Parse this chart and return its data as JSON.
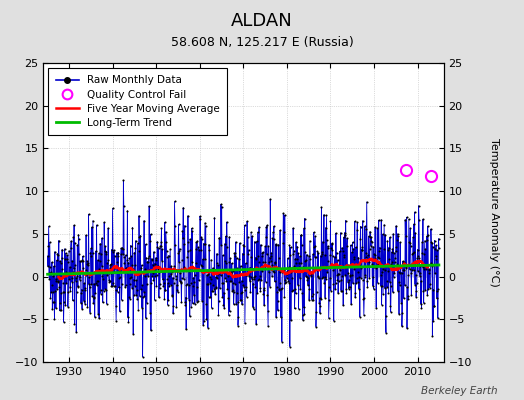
{
  "title": "ALDAN",
  "subtitle": "58.608 N, 125.217 E (Russia)",
  "ylabel": "Temperature Anomaly (°C)",
  "credit": "Berkeley Earth",
  "xlim": [
    1924,
    2016
  ],
  "ylim": [
    -10,
    25
  ],
  "yticks": [
    -10,
    -5,
    0,
    5,
    10,
    15,
    20,
    25
  ],
  "xticks": [
    1930,
    1940,
    1950,
    1960,
    1970,
    1980,
    1990,
    2000,
    2010
  ],
  "seed": 42,
  "raw_color": "#0000cc",
  "ma_color": "#ff0000",
  "trend_color": "#00bb00",
  "qc_color": "#ff00ff",
  "bg_color": "#ffffff",
  "fig_bg_color": "#e0e0e0",
  "n_months": 1080,
  "start_year": 1925.0,
  "qc_points": [
    [
      2007.3,
      12.5
    ],
    [
      2013.2,
      11.8
    ]
  ]
}
